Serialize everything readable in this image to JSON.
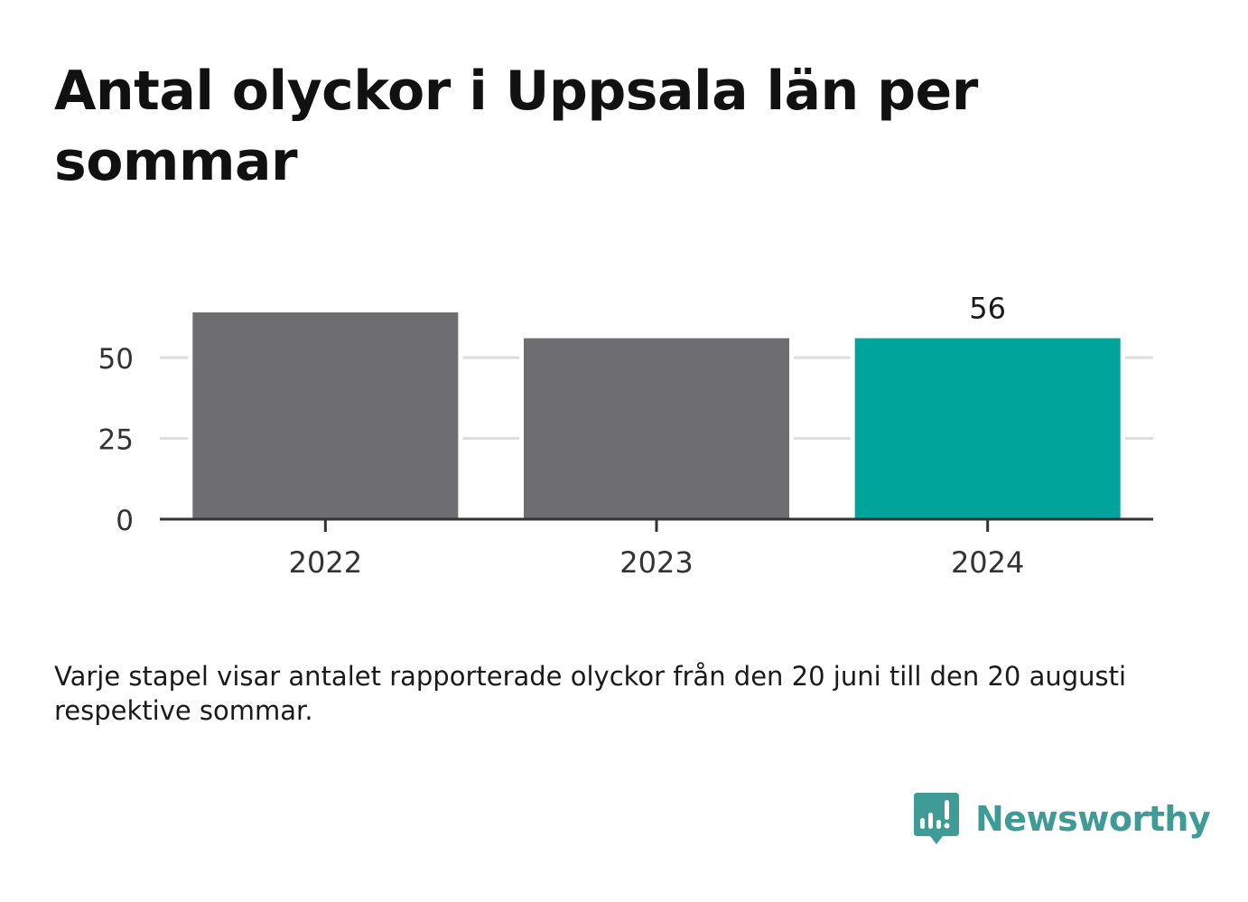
{
  "title": "Antal olyckor i Uppsala län per sommar",
  "caption": "Varje stapel visar antalet rapporterade olyckor från den 20 juni till den 20 augusti respektive sommar.",
  "brand": {
    "name": "Newsworthy",
    "logo_icon": "bar-chart-speech-bubble-icon",
    "color": "#3e9b95"
  },
  "chart_data": {
    "type": "bar",
    "categories": [
      "2022",
      "2023",
      "2024"
    ],
    "values": [
      64,
      56,
      56
    ],
    "data_labels": [
      "",
      "",
      "56"
    ],
    "highlight_index": 2,
    "colors": {
      "default": "#6e6d72",
      "highlight": "#00a49a",
      "grid": "#dedede",
      "axis": "#333333"
    },
    "yticks": [
      0,
      25,
      50
    ],
    "ylim": [
      0,
      64
    ],
    "grid": true,
    "xlabel": "",
    "ylabel": ""
  }
}
